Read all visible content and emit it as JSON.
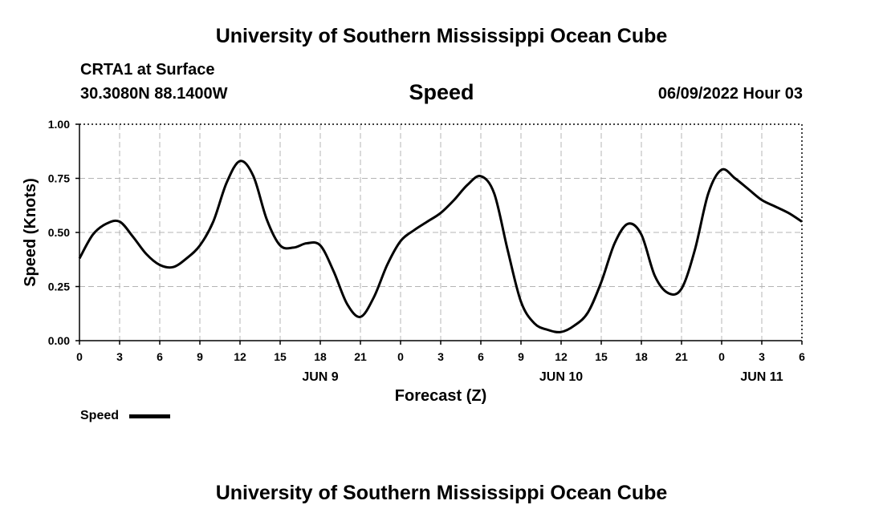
{
  "header": {
    "title": "University of Southern Mississippi Ocean Cube",
    "station": "CRTA1 at Surface",
    "coords": "30.3080N  88.1400W",
    "variable": "Speed",
    "timestamp": "06/09/2022 Hour 03"
  },
  "footer": {
    "title": "University of Southern Mississippi Ocean Cube"
  },
  "legend": {
    "label": "Speed"
  },
  "chart_data": {
    "type": "line",
    "title": "Speed",
    "xlabel": "Forecast (Z)",
    "ylabel": "Speed (Knots)",
    "ylim": [
      0,
      1.0
    ],
    "yticks": [
      "0.00",
      "0.25",
      "0.50",
      "0.75",
      "1.00"
    ],
    "xticks": [
      "0",
      "3",
      "6",
      "9",
      "12",
      "15",
      "18",
      "21",
      "0",
      "3",
      "6",
      "9",
      "12",
      "15",
      "18",
      "21",
      "0",
      "3",
      "6"
    ],
    "date_labels": [
      {
        "label": "JUN 9",
        "at_tick": 6
      },
      {
        "label": "JUN 10",
        "at_tick": 12
      },
      {
        "label": "JUN 11",
        "at_tick": 17
      }
    ],
    "xlim": [
      0,
      54
    ],
    "x_unit": "hours from 06/09/2022 00Z",
    "grid": true,
    "line_color": "#000000",
    "series": [
      {
        "name": "Speed",
        "x": [
          0,
          1,
          2,
          3,
          4,
          5,
          6,
          7,
          8,
          9,
          10,
          11,
          12,
          13,
          14,
          15,
          16,
          17,
          18,
          19,
          20,
          21,
          22,
          23,
          24,
          25,
          26,
          27,
          28,
          29,
          30,
          31,
          32,
          33,
          34,
          35,
          36,
          37,
          38,
          39,
          40,
          41,
          42,
          43,
          44,
          45,
          46,
          47,
          48,
          49,
          50,
          51,
          52,
          53,
          54
        ],
        "values": [
          0.38,
          0.49,
          0.54,
          0.55,
          0.48,
          0.4,
          0.35,
          0.34,
          0.38,
          0.44,
          0.55,
          0.73,
          0.83,
          0.76,
          0.56,
          0.44,
          0.43,
          0.45,
          0.44,
          0.32,
          0.17,
          0.11,
          0.2,
          0.35,
          0.46,
          0.51,
          0.55,
          0.59,
          0.65,
          0.72,
          0.76,
          0.68,
          0.42,
          0.18,
          0.08,
          0.05,
          0.04,
          0.07,
          0.13,
          0.27,
          0.45,
          0.54,
          0.49,
          0.3,
          0.22,
          0.24,
          0.42,
          0.68,
          0.79,
          0.75,
          0.7,
          0.65,
          0.62,
          0.59,
          0.55
        ]
      }
    ]
  }
}
